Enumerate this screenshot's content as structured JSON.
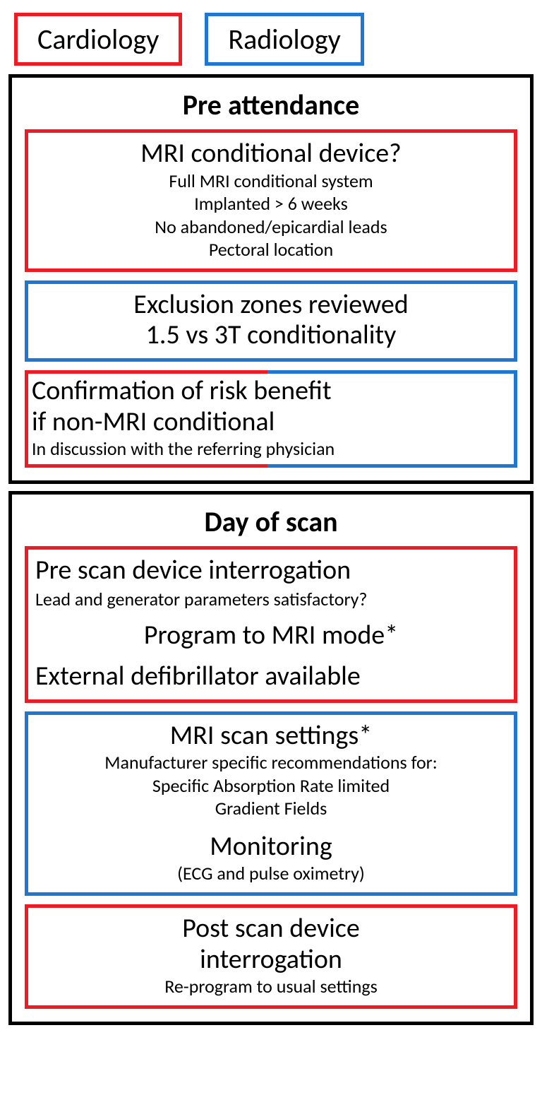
{
  "colors": {
    "red": "#ed1c24",
    "blue": "#1f77d0",
    "black": "#000000",
    "bg": "#ffffff"
  },
  "legend": {
    "cardiology": "Cardiology",
    "radiology": "Radiology"
  },
  "pre_attendance": {
    "title": "Pre attendance",
    "box1": {
      "border": "red",
      "l1": "MRI conditional device?",
      "l2": "Full MRI conditional system",
      "l3": "Implanted > 6 weeks",
      "l4": "No abandoned/epicardial leads",
      "l5": "Pectoral location"
    },
    "box2": {
      "border": "blue",
      "l1": "Exclusion zones reviewed",
      "l2": "1.5 vs 3T conditionality"
    },
    "box3": {
      "border_left": "red",
      "border_right": "blue",
      "l1": "Confirmation of risk benefit",
      "l2": "if non-MRI conditional",
      "l3": "In discussion with the referring physician"
    }
  },
  "day_of_scan": {
    "title": "Day of scan",
    "box1": {
      "border": "red",
      "l1": "Pre scan device interrogation",
      "l2": "Lead and generator parameters satisfactory?",
      "l3": "Program to MRI mode*",
      "l4": "External defibrillator available"
    },
    "box2": {
      "border": "blue",
      "l1": "MRI scan settings*",
      "l2": "Manufacturer specific recommendations for:",
      "l3": "Specific Absorption Rate limited",
      "l4": "Gradient Fields",
      "l5": "Monitoring",
      "l6": "(ECG and pulse oximetry)"
    },
    "box3": {
      "border": "red",
      "l1": "Post scan device",
      "l2": "interrogation",
      "l3": "Re-program to usual settings"
    }
  }
}
